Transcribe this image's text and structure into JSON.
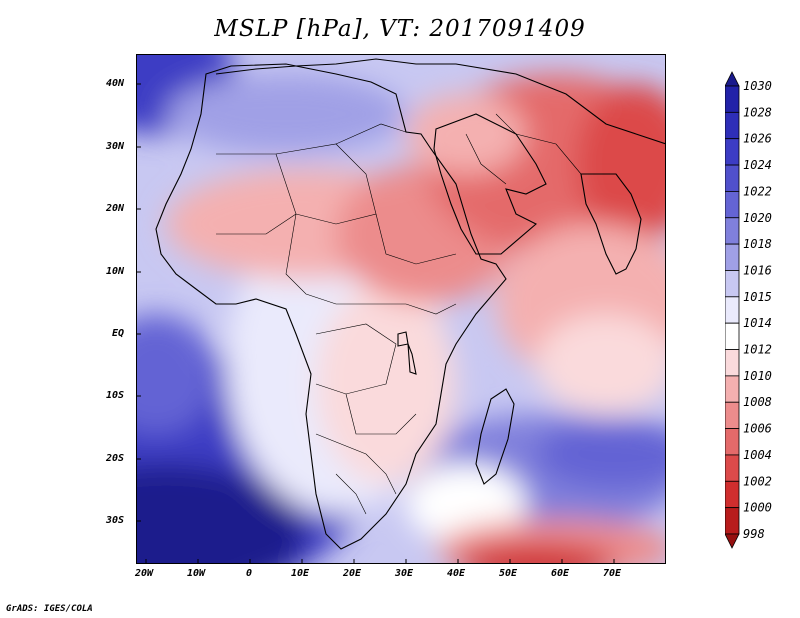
{
  "title": "MSLP [hPa], VT: 2017091409",
  "credit": "GrADS: IGES/COLA",
  "map": {
    "lat_labels": [
      "40N",
      "30N",
      "20N",
      "10N",
      "EQ",
      "10S",
      "20S",
      "30S"
    ],
    "lon_labels": [
      "20W",
      "10W",
      "0",
      "10E",
      "20E",
      "30E",
      "40E",
      "50E",
      "60E",
      "70E"
    ]
  },
  "colorbar": {
    "levels": [
      "1030",
      "1028",
      "1026",
      "1024",
      "1022",
      "1020",
      "1018",
      "1016",
      "1015",
      "1014",
      "1012",
      "1010",
      "1008",
      "1006",
      "1004",
      "1002",
      "1000",
      "998"
    ],
    "colors": [
      "#1a1a8c",
      "#2222a8",
      "#2e2eb8",
      "#3c3cc4",
      "#5050cc",
      "#6464d4",
      "#8080dc",
      "#a0a0e6",
      "#c8c8f2",
      "#eaeafc",
      "#ffffff",
      "#fadadc",
      "#f4b0b0",
      "#ec8c8c",
      "#e46a6a",
      "#dc4a4a",
      "#d02e2e",
      "#b81c1c",
      "#961010"
    ]
  }
}
